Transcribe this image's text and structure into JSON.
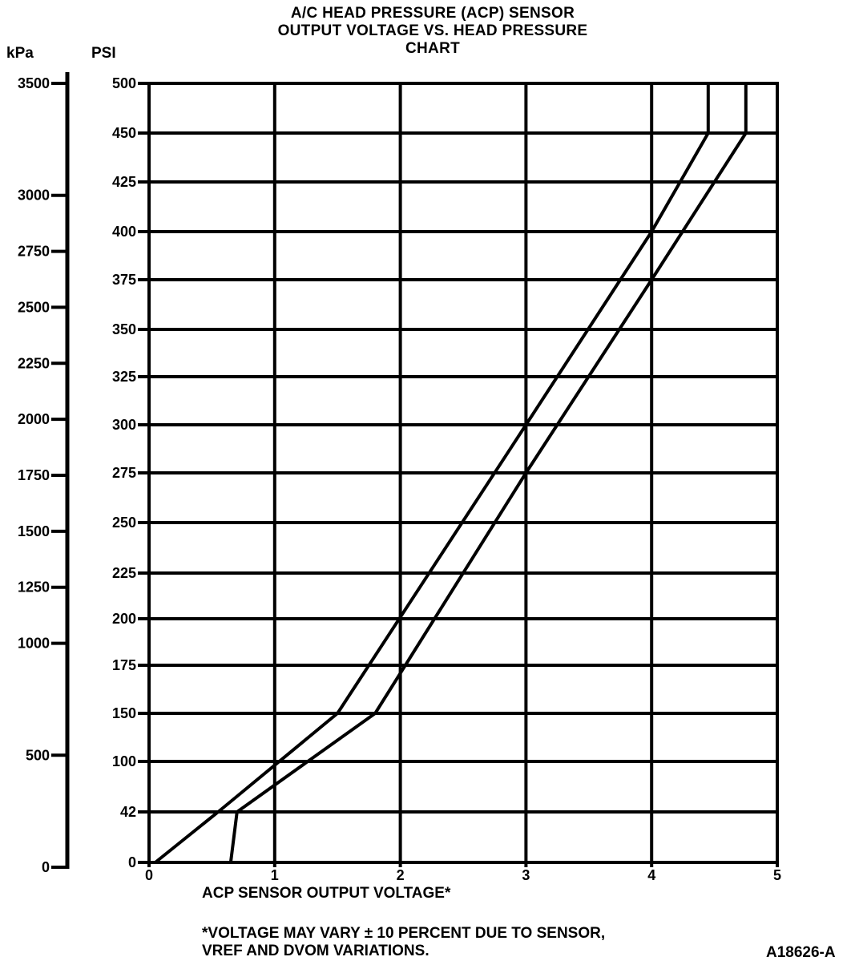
{
  "chart_data": {
    "type": "line",
    "title": [
      "A/C HEAD PRESSURE (ACP) SENSOR",
      "OUTPUT VOLTAGE VS. HEAD PRESSURE",
      "CHART"
    ],
    "xlabel": "ACP SENSOR OUTPUT VOLTAGE*",
    "ylabel_left": "kPa",
    "ylabel_psi": "PSI",
    "x_ticks": [
      "0",
      "1",
      "2",
      "3",
      "4",
      "5"
    ],
    "x_lim": [
      0,
      5
    ],
    "psi_ticks": [
      "0",
      "42",
      "100",
      "150",
      "175",
      "200",
      "225",
      "250",
      "275",
      "300",
      "325",
      "350",
      "375",
      "400",
      "425",
      "450",
      "500"
    ],
    "kpa_ticks": [
      {
        "label": "0",
        "kpa": 0
      },
      {
        "label": "500",
        "kpa": 500
      },
      {
        "label": "1000",
        "kpa": 1000
      },
      {
        "label": "1250",
        "kpa": 1250
      },
      {
        "label": "1500",
        "kpa": 1500
      },
      {
        "label": "1750",
        "kpa": 1750
      },
      {
        "label": "2000",
        "kpa": 2000
      },
      {
        "label": "2250",
        "kpa": 2250
      },
      {
        "label": "2500",
        "kpa": 2500
      },
      {
        "label": "2750",
        "kpa": 2750
      },
      {
        "label": "3000",
        "kpa": 3000
      },
      {
        "label": "3500",
        "kpa": 3500
      }
    ],
    "series": [
      {
        "role": "upper boundary",
        "x": [
          0.05,
          0.55,
          1.5,
          3.0,
          4.0,
          4.45,
          4.45
        ],
        "y": [
          0,
          42,
          150,
          300,
          400,
          450,
          500
        ]
      },
      {
        "role": "lower boundary",
        "x": [
          0.65,
          0.7,
          1.8,
          3.0,
          4.0,
          4.75,
          4.75
        ],
        "y": [
          0,
          42,
          150,
          275,
          375,
          450,
          500
        ]
      }
    ],
    "grid": true,
    "footnote": [
      "*VOLTAGE MAY VARY ± 10 PERCENT DUE TO SENSOR,",
      "VREF AND DVOM VARIATIONS."
    ],
    "figure_id": "A18626-A"
  }
}
